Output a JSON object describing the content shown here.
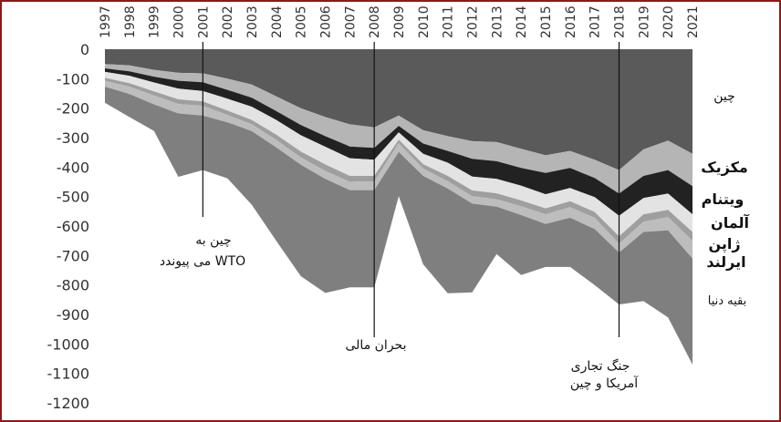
{
  "chart_data": {
    "type": "area",
    "stacked": true,
    "x": [
      1997,
      1998,
      1999,
      2000,
      2001,
      2002,
      2003,
      2004,
      2005,
      2006,
      2007,
      2008,
      2009,
      2010,
      2011,
      2012,
      2013,
      2014,
      2015,
      2016,
      2017,
      2018,
      2019,
      2020,
      2021
    ],
    "x_tick_labels": [
      "1997",
      "1998",
      "1999",
      "2000",
      "2001",
      "2002",
      "2003",
      "2004",
      "2005",
      "2006",
      "2007",
      "2008",
      "2009",
      "2010",
      "2011",
      "2012",
      "2013",
      "2014",
      "2015",
      "2016",
      "2017",
      "2018",
      "2019",
      "2020",
      "2021"
    ],
    "x_axis_position": "top",
    "ylim": [
      -1200,
      0
    ],
    "y_ticks": [
      0,
      -100,
      -200,
      -300,
      -400,
      -500,
      -600,
      -700,
      -800,
      -900,
      -1000,
      -1100,
      -1200
    ],
    "y_tick_labels": [
      "0",
      "-100",
      "-200",
      "-300",
      "-400",
      "-500",
      "-600",
      "-700",
      "-800",
      "-900",
      "-1000",
      "-1100",
      "-1200"
    ],
    "grid": false,
    "series": [
      {
        "name": "چین",
        "color": "#5a5a5a",
        "values": [
          -50,
          -55,
          -70,
          -80,
          -82,
          -100,
          -120,
          -160,
          -200,
          -230,
          -255,
          -265,
          -225,
          -275,
          -295,
          -312,
          -315,
          -338,
          -360,
          -345,
          -375,
          -410,
          -340,
          -310,
          -355
        ]
      },
      {
        "name": "مکزیک",
        "color": "#b5b5b5",
        "values": [
          -15,
          -20,
          -23,
          -27,
          -30,
          -38,
          -45,
          -50,
          -57,
          -65,
          -75,
          -70,
          -35,
          -45,
          -50,
          -60,
          -65,
          -65,
          -60,
          -58,
          -62,
          -80,
          -90,
          -100,
          -110
        ]
      },
      {
        "name": "ویتنام",
        "color": "#222222",
        "values": [
          -12,
          -15,
          -20,
          -27,
          -30,
          -30,
          -30,
          -30,
          -35,
          -36,
          -40,
          -40,
          -22,
          -35,
          -40,
          -60,
          -60,
          -60,
          -72,
          -68,
          -65,
          -75,
          -75,
          -80,
          -95
        ]
      },
      {
        "name": "آلمان",
        "color": "#e3e3e3",
        "values": [
          -20,
          -25,
          -30,
          -36,
          -35,
          -40,
          -45,
          -50,
          -55,
          -60,
          -60,
          -55,
          -25,
          -35,
          -45,
          -47,
          -49,
          -50,
          -48,
          -45,
          -50,
          -70,
          -55,
          -55,
          -60
        ]
      },
      {
        "name": "ژاپن",
        "color": "#9f9f9f",
        "values": [
          -10,
          -12,
          -14,
          -16,
          -15,
          -15,
          -15,
          -18,
          -20,
          -22,
          -20,
          -18,
          -12,
          -15,
          -18,
          -20,
          -20,
          -20,
          -20,
          -20,
          -20,
          -25,
          -25,
          -25,
          -30
        ]
      },
      {
        "name": "ایرلند",
        "color": "#bdbdbd",
        "values": [
          -20,
          -25,
          -30,
          -32,
          -33,
          -25,
          -23,
          -25,
          -25,
          -27,
          -28,
          -30,
          -30,
          -25,
          -25,
          -25,
          -25,
          -30,
          -33,
          -36,
          -38,
          -30,
          -35,
          -45,
          -60
        ]
      },
      {
        "name": "بقیه دنیا",
        "color": "#7f7f7f",
        "values": [
          -55,
          -78,
          -90,
          -215,
          -185,
          -190,
          -250,
          -317,
          -378,
          -387,
          -330,
          -330,
          -150,
          -300,
          -355,
          -301,
          -161,
          -203,
          -146,
          -167,
          -190,
          -176,
          -235,
          -295,
          -360
        ]
      }
    ],
    "annotations": [
      {
        "x": 2001,
        "lines": [
          "چین به",
          "می پیوندد WTO"
        ]
      },
      {
        "x": 2008,
        "lines": [
          "بحران مالی"
        ]
      },
      {
        "x": 2018,
        "lines": [
          "جنگ تجاری",
          "آمریکا و چین"
        ]
      }
    ]
  }
}
